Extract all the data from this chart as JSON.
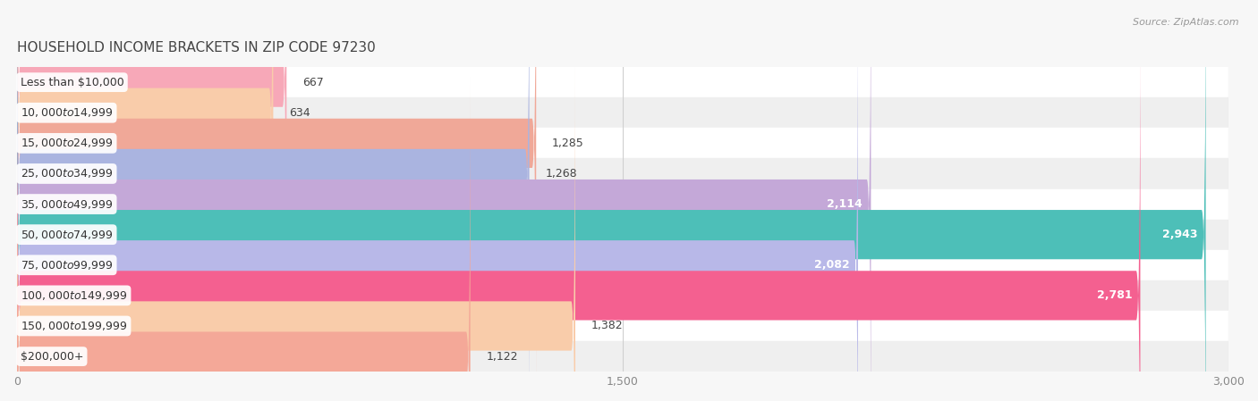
{
  "title": "HOUSEHOLD INCOME BRACKETS IN ZIP CODE 97230",
  "source": "Source: ZipAtlas.com",
  "categories": [
    "Less than $10,000",
    "$10,000 to $14,999",
    "$15,000 to $24,999",
    "$25,000 to $34,999",
    "$35,000 to $49,999",
    "$50,000 to $74,999",
    "$75,000 to $99,999",
    "$100,000 to $149,999",
    "$150,000 to $199,999",
    "$200,000+"
  ],
  "values": [
    667,
    634,
    1285,
    1268,
    2114,
    2943,
    2082,
    2781,
    1382,
    1122
  ],
  "bar_colors": [
    "#f7a8b8",
    "#f9ccaa",
    "#f0a898",
    "#aab4e0",
    "#c4a8d8",
    "#4dbfb8",
    "#b8b8e8",
    "#f46090",
    "#f9ccaa",
    "#f4a898"
  ],
  "value_labels": [
    "667",
    "634",
    "1,285",
    "1,268",
    "2,114",
    "2,943",
    "2,082",
    "2,781",
    "1,382",
    "1,122"
  ],
  "xlim": [
    0,
    3000
  ],
  "xticks": [
    0,
    1500,
    3000
  ],
  "background_color": "#f7f7f7",
  "row_color_even": "#ffffff",
  "row_color_odd": "#efefef",
  "title_fontsize": 11,
  "label_fontsize": 9,
  "value_fontsize": 9,
  "bar_height": 0.62,
  "value_threshold": 1800
}
